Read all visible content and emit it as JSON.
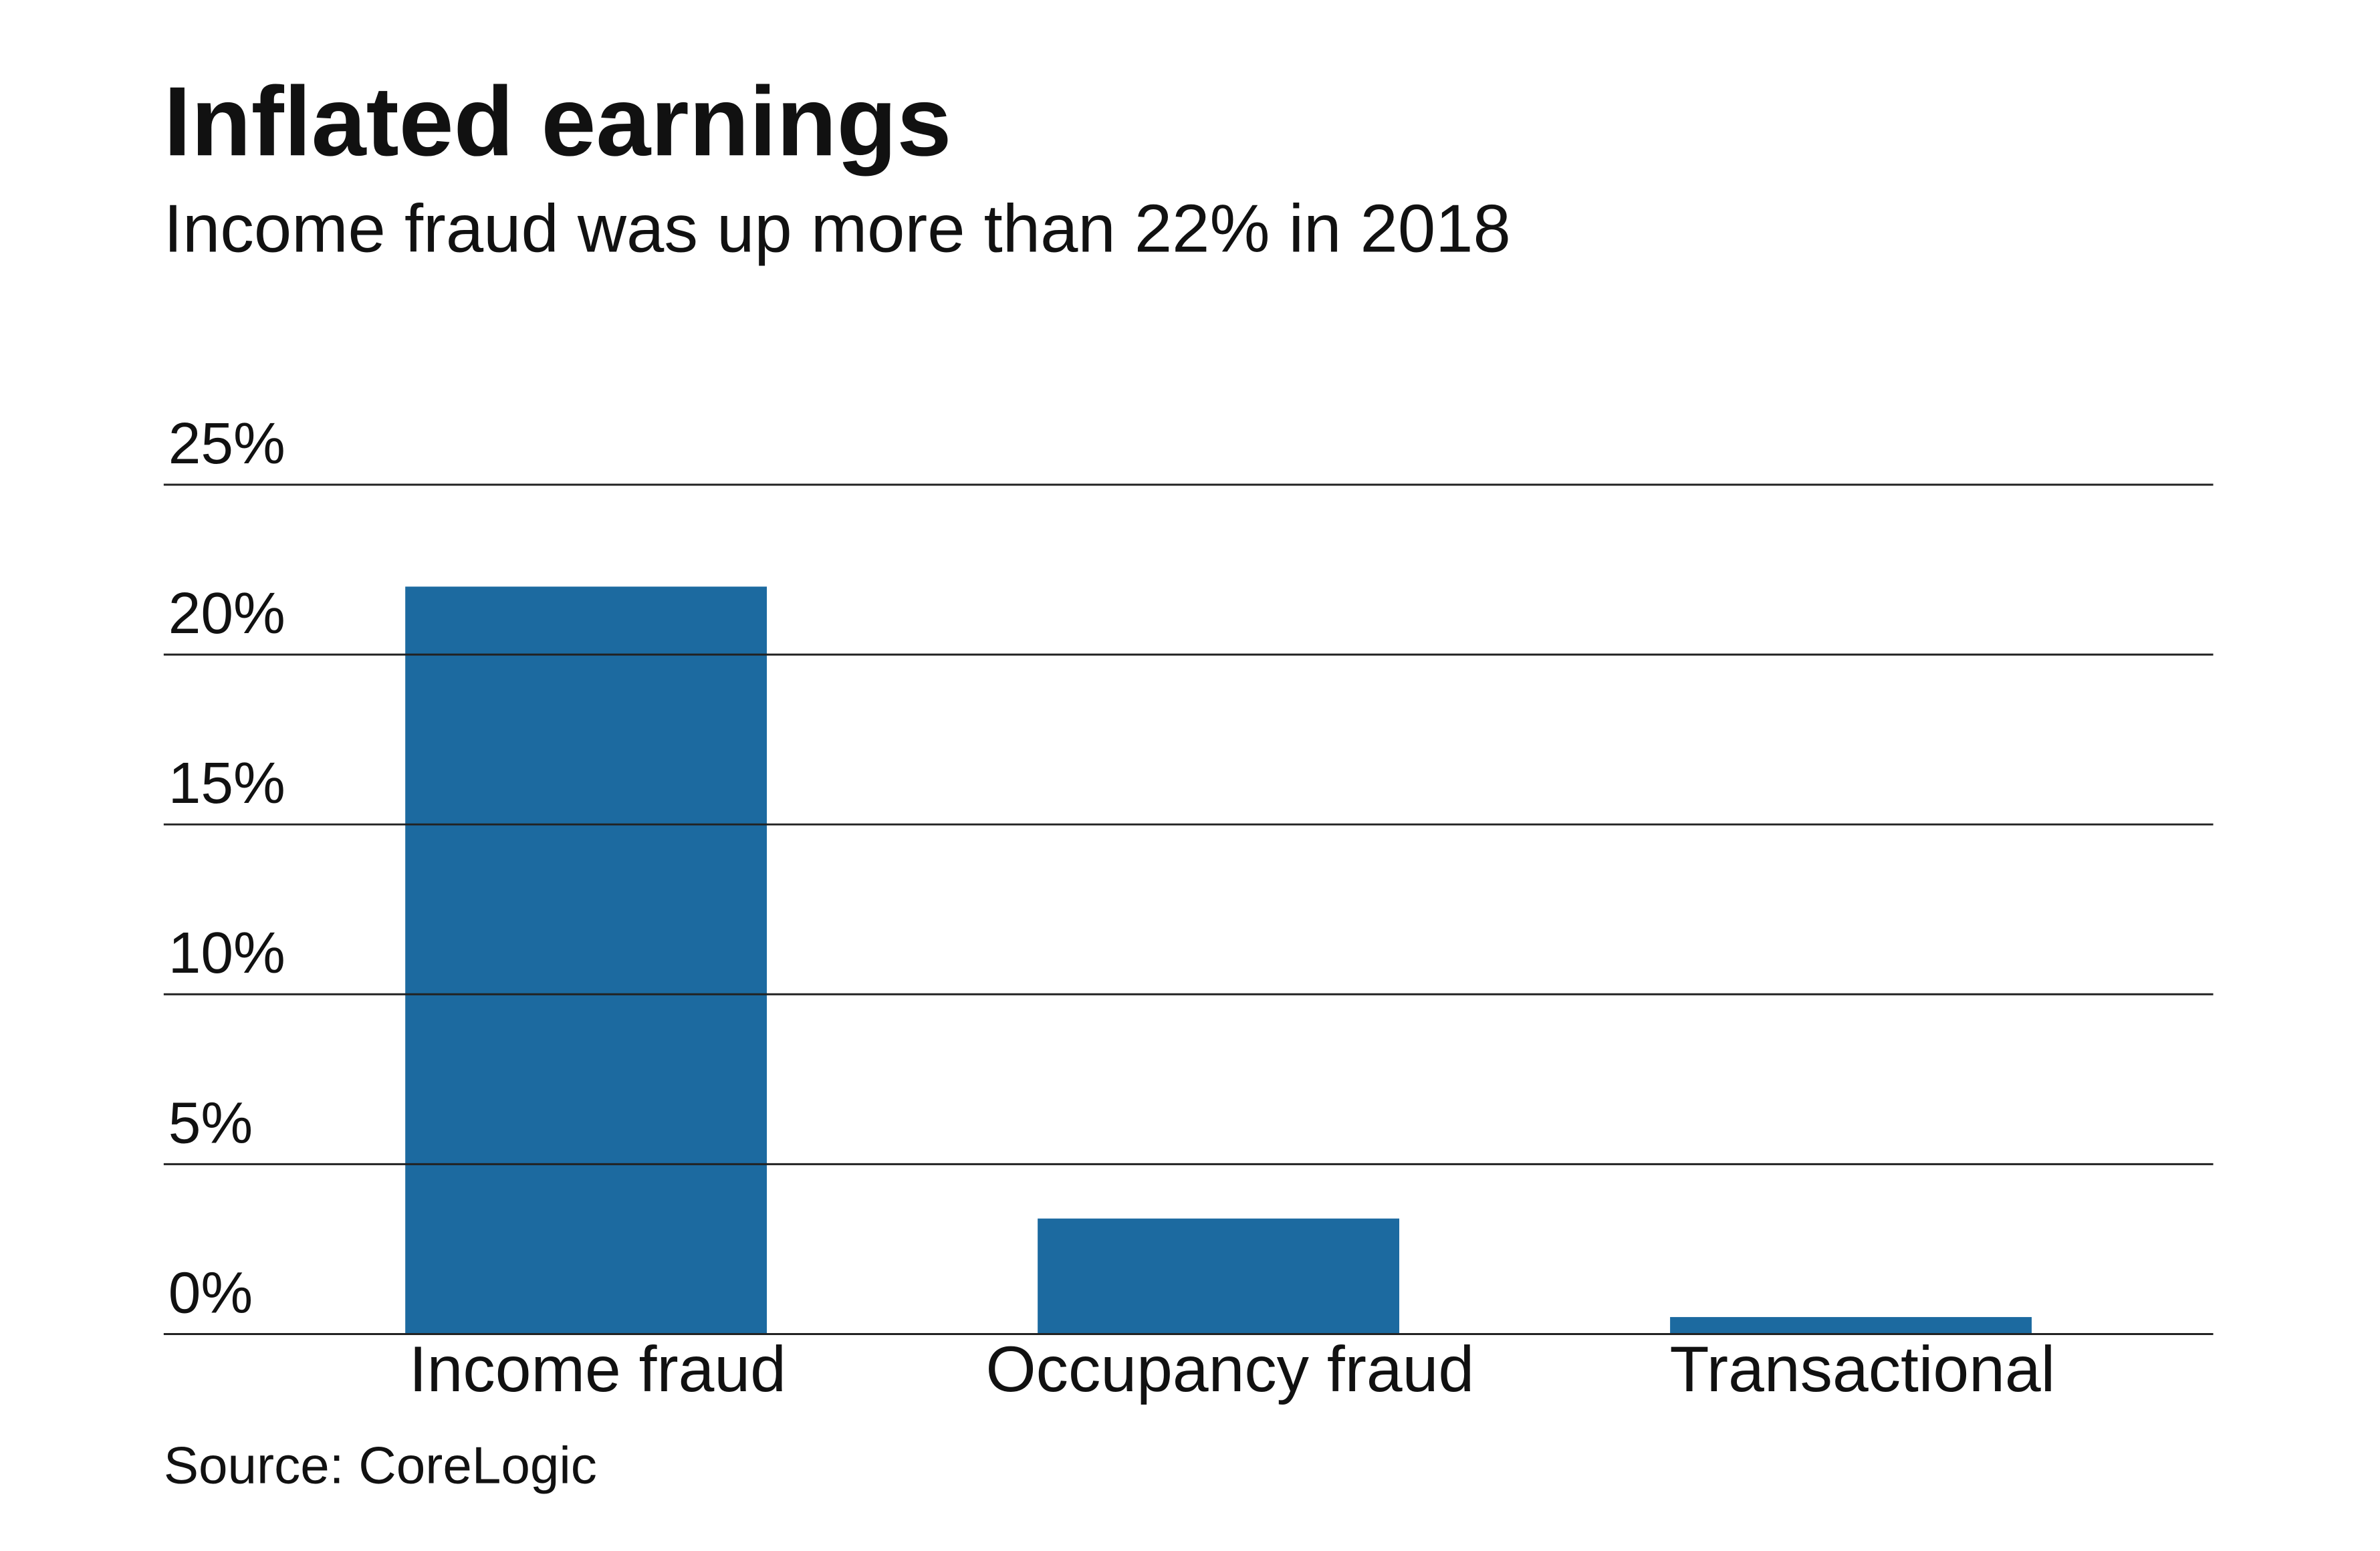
{
  "chart_data": {
    "type": "bar",
    "title": "Inflated earnings",
    "subtitle": "Income fraud was up more than 22% in 2018",
    "categories": [
      "Income fraud",
      "Occupancy fraud",
      "Transactional"
    ],
    "values": [
      22,
      3.4,
      0.5
    ],
    "color": "#1c6aa0",
    "ylim": [
      0,
      25
    ],
    "yticks": [
      {
        "value": 0,
        "label": "0%"
      },
      {
        "value": 5,
        "label": "5%"
      },
      {
        "value": 10,
        "label": "10%"
      },
      {
        "value": 15,
        "label": "15%"
      },
      {
        "value": 20,
        "label": "20%"
      },
      {
        "value": 25,
        "label": "25%"
      }
    ],
    "grid": true,
    "source": "Source: CoreLogic"
  }
}
